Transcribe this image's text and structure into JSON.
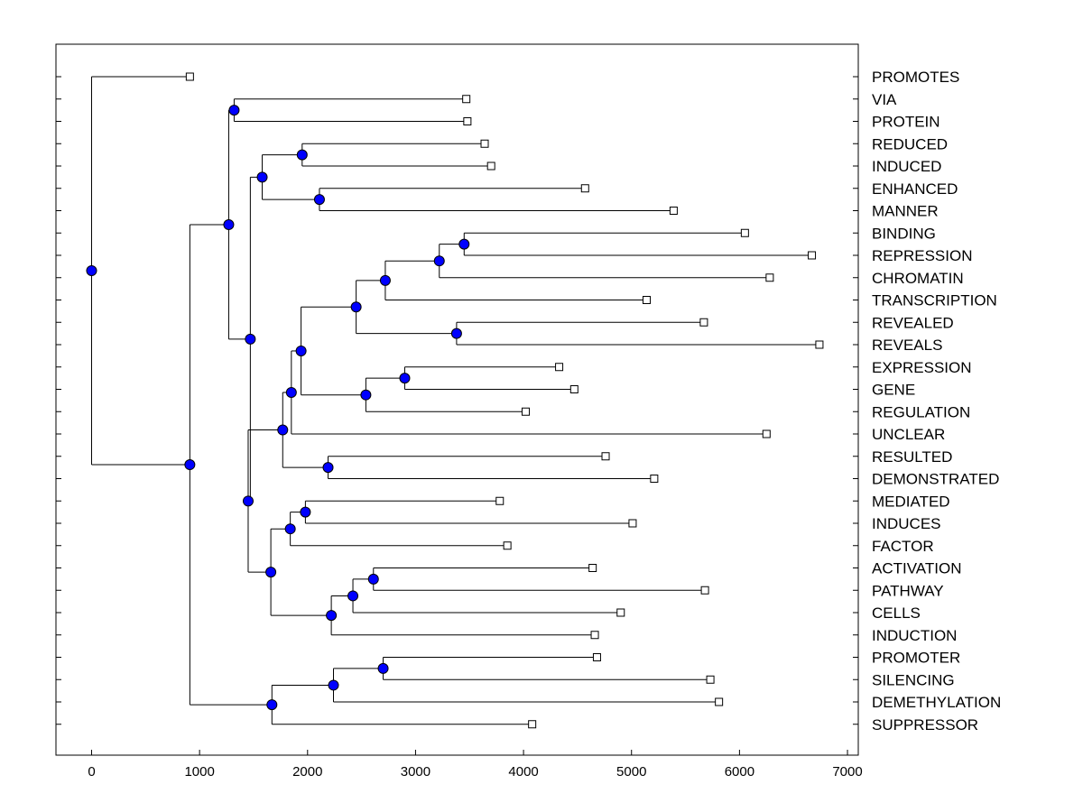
{
  "chart_data": {
    "type": "dendrogram",
    "title": "",
    "xlabel": "",
    "ylabel": "",
    "xlim": [
      -330,
      7100
    ],
    "xticks": [
      0,
      1000,
      2000,
      3000,
      4000,
      5000,
      6000,
      7000
    ],
    "xtick_labels": [
      "0",
      "1000",
      "2000",
      "3000",
      "4000",
      "5000",
      "6000",
      "7000"
    ],
    "node_color": "#0000ff",
    "leaves": [
      {
        "label": "PROMOTES",
        "value": 910
      },
      {
        "label": "VIA",
        "value": 3470
      },
      {
        "label": "PROTEIN",
        "value": 3480
      },
      {
        "label": "REDUCED",
        "value": 3640
      },
      {
        "label": "INDUCED",
        "value": 3700
      },
      {
        "label": "ENHANCED",
        "value": 4570
      },
      {
        "label": "MANNER",
        "value": 5390
      },
      {
        "label": "BINDING",
        "value": 6050
      },
      {
        "label": "REPRESSION",
        "value": 6670
      },
      {
        "label": "CHROMATIN",
        "value": 6280
      },
      {
        "label": "TRANSCRIPTION",
        "value": 5140
      },
      {
        "label": "REVEALED",
        "value": 5670
      },
      {
        "label": "REVEALS",
        "value": 6740
      },
      {
        "label": "EXPRESSION",
        "value": 4330
      },
      {
        "label": "GENE",
        "value": 4470
      },
      {
        "label": "REGULATION",
        "value": 4020
      },
      {
        "label": "UNCLEAR",
        "value": 6250
      },
      {
        "label": "RESULTED",
        "value": 4760
      },
      {
        "label": "DEMONSTRATED",
        "value": 5210
      },
      {
        "label": "MEDIATED",
        "value": 3780
      },
      {
        "label": "INDUCES",
        "value": 5010
      },
      {
        "label": "FACTOR",
        "value": 3850
      },
      {
        "label": "ACTIVATION",
        "value": 4640
      },
      {
        "label": "PATHWAY",
        "value": 5680
      },
      {
        "label": "CELLS",
        "value": 4900
      },
      {
        "label": "INDUCTION",
        "value": 4660
      },
      {
        "label": "PROMOTER",
        "value": 4680
      },
      {
        "label": "SILENCING",
        "value": 5730
      },
      {
        "label": "DEMETHYLATION",
        "value": 5810
      },
      {
        "label": "SUPPRESSOR",
        "value": 4080
      }
    ],
    "merges": [
      {
        "id": "A",
        "value": 1320,
        "children": [
          "VIA",
          "PROTEIN"
        ]
      },
      {
        "id": "B",
        "value": 1950,
        "children": [
          "REDUCED",
          "INDUCED"
        ]
      },
      {
        "id": "C",
        "value": 2110,
        "children": [
          "ENHANCED",
          "MANNER"
        ]
      },
      {
        "id": "D",
        "value": 1580,
        "children": [
          "B",
          "C"
        ]
      },
      {
        "id": "E",
        "value": 3450,
        "children": [
          "BINDING",
          "REPRESSION"
        ]
      },
      {
        "id": "F",
        "value": 3220,
        "children": [
          "E",
          "CHROMATIN"
        ]
      },
      {
        "id": "G",
        "value": 2720,
        "children": [
          "F",
          "TRANSCRIPTION"
        ]
      },
      {
        "id": "H",
        "value": 3380,
        "children": [
          "REVEALED",
          "REVEALS"
        ]
      },
      {
        "id": "I",
        "value": 2450,
        "children": [
          "G",
          "H"
        ]
      },
      {
        "id": "J",
        "value": 2900,
        "children": [
          "EXPRESSION",
          "GENE"
        ]
      },
      {
        "id": "K",
        "value": 2540,
        "children": [
          "J",
          "REGULATION"
        ]
      },
      {
        "id": "L",
        "value": 1940,
        "children": [
          "I",
          "K"
        ]
      },
      {
        "id": "M",
        "value": 1850,
        "children": [
          "L",
          "UNCLEAR"
        ]
      },
      {
        "id": "N",
        "value": 2190,
        "children": [
          "RESULTED",
          "DEMONSTRATED"
        ]
      },
      {
        "id": "O",
        "value": 1770,
        "children": [
          "M",
          "N"
        ]
      },
      {
        "id": "P",
        "value": 1980,
        "children": [
          "MEDIATED",
          "INDUCES"
        ]
      },
      {
        "id": "Q",
        "value": 1840,
        "children": [
          "P",
          "FACTOR"
        ]
      },
      {
        "id": "R",
        "value": 2610,
        "children": [
          "ACTIVATION",
          "PATHWAY"
        ]
      },
      {
        "id": "S",
        "value": 2420,
        "children": [
          "R",
          "CELLS"
        ]
      },
      {
        "id": "T",
        "value": 2220,
        "children": [
          "S",
          "INDUCTION"
        ]
      },
      {
        "id": "U",
        "value": 1660,
        "children": [
          "Q",
          "T"
        ]
      },
      {
        "id": "V",
        "value": 1450,
        "children": [
          "O",
          "U"
        ]
      },
      {
        "id": "W",
        "value": 1470,
        "children": [
          "D",
          "V"
        ]
      },
      {
        "id": "X",
        "value": 1270,
        "children": [
          "A",
          "W"
        ]
      },
      {
        "id": "Y",
        "value": 2700,
        "children": [
          "PROMOTER",
          "SILENCING"
        ]
      },
      {
        "id": "Z",
        "value": 2240,
        "children": [
          "Y",
          "DEMETHYLATION"
        ]
      },
      {
        "id": "AA",
        "value": 1670,
        "children": [
          "Z",
          "SUPPRESSOR"
        ]
      },
      {
        "id": "AB",
        "value": 910,
        "children": [
          "X",
          "AA"
        ]
      },
      {
        "id": "ROOT",
        "value": 0,
        "children": [
          "PROMOTES",
          "AB"
        ]
      }
    ]
  }
}
